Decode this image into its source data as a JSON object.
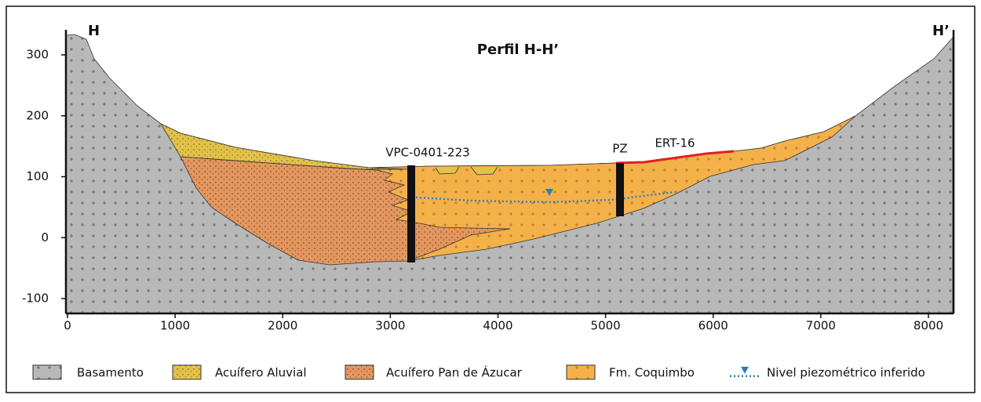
{
  "title": "Perfil H-H’",
  "left_label": "H",
  "right_label": "H’",
  "wells": [
    "VPC-0401-223",
    "PZ"
  ],
  "survey_label": "ERT-16",
  "x_ticks": [
    0,
    1000,
    2000,
    3000,
    4000,
    5000,
    6000,
    7000,
    8000
  ],
  "y_ticks": [
    300,
    200,
    100,
    0,
    -100
  ],
  "legend": [
    "Basamento",
    "Acuífero Aluvial",
    "Acuífero Pan de Ázucar",
    "Fm. Coquimbo",
    "Nivel piezométrico inferido"
  ]
}
